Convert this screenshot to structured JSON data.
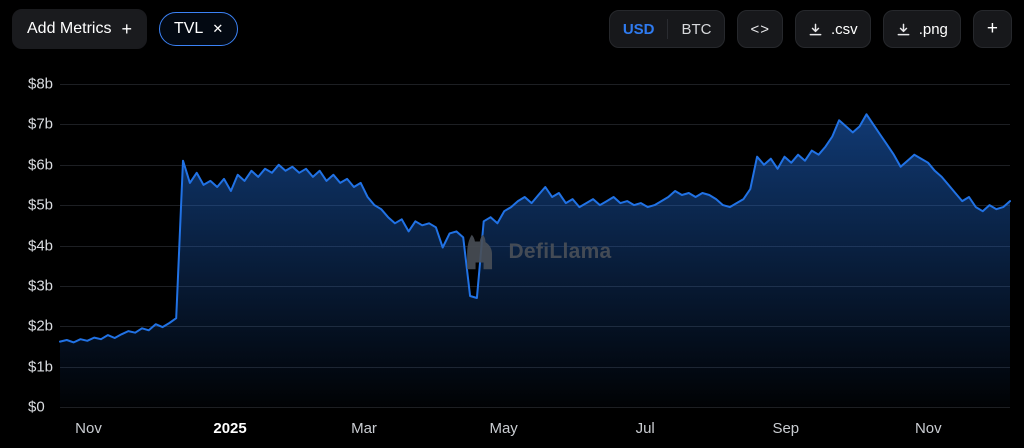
{
  "header": {
    "add_metrics": {
      "label": "Add Metrics",
      "icon": "+"
    },
    "metric_pills": [
      {
        "label": "TVL",
        "close_icon": "✕"
      }
    ],
    "currency_toggle": {
      "options": [
        {
          "label": "USD",
          "selected": true
        },
        {
          "label": "BTC",
          "selected": false
        }
      ]
    },
    "embed_button": {
      "icon": "<>"
    },
    "csv_button": {
      "label": ".csv"
    },
    "png_button": {
      "label": ".png"
    },
    "add_chart_button": {
      "label": "+"
    }
  },
  "watermark": {
    "text": "DefiLlama"
  },
  "chart_data": {
    "type": "area",
    "title": "TVL",
    "series_name": "TVL (USD)",
    "ylim": [
      0,
      8
    ],
    "unit": "$ billions",
    "grid": true,
    "line_color": "#2172e5",
    "area_top_color": "rgba(33,114,229,0.50)",
    "area_bottom_color": "rgba(33,114,229,0.02)",
    "grid_color": "#1d1f23",
    "y_ticks": [
      {
        "value": 0,
        "label": "$0"
      },
      {
        "value": 1,
        "label": "$1b"
      },
      {
        "value": 2,
        "label": "$2b"
      },
      {
        "value": 3,
        "label": "$3b"
      },
      {
        "value": 4,
        "label": "$4b"
      },
      {
        "value": 5,
        "label": "$5b"
      },
      {
        "value": 6,
        "label": "$6b"
      },
      {
        "value": 7,
        "label": "$7b"
      },
      {
        "value": 8,
        "label": "$8b"
      }
    ],
    "x_ticks": [
      {
        "label": "Nov",
        "pos": 0.03,
        "bold": false
      },
      {
        "label": "2025",
        "pos": 0.179,
        "bold": true
      },
      {
        "label": "Mar",
        "pos": 0.32,
        "bold": false
      },
      {
        "label": "May",
        "pos": 0.467,
        "bold": false
      },
      {
        "label": "Jul",
        "pos": 0.616,
        "bold": false
      },
      {
        "label": "Sep",
        "pos": 0.764,
        "bold": false
      },
      {
        "label": "Nov",
        "pos": 0.914,
        "bold": false
      }
    ],
    "values": [
      1.62,
      1.66,
      1.6,
      1.68,
      1.64,
      1.72,
      1.68,
      1.78,
      1.71,
      1.8,
      1.88,
      1.84,
      1.95,
      1.9,
      2.05,
      1.98,
      2.08,
      2.2,
      6.1,
      5.55,
      5.8,
      5.5,
      5.6,
      5.45,
      5.65,
      5.35,
      5.75,
      5.6,
      5.85,
      5.7,
      5.9,
      5.8,
      6.0,
      5.85,
      5.95,
      5.8,
      5.9,
      5.7,
      5.85,
      5.6,
      5.75,
      5.55,
      5.65,
      5.45,
      5.55,
      5.2,
      5.0,
      4.9,
      4.7,
      4.55,
      4.65,
      4.35,
      4.6,
      4.5,
      4.55,
      4.45,
      3.95,
      4.3,
      4.35,
      4.2,
      2.75,
      2.7,
      4.6,
      4.7,
      4.55,
      4.85,
      4.95,
      5.1,
      5.2,
      5.05,
      5.25,
      5.45,
      5.2,
      5.3,
      5.05,
      5.15,
      4.95,
      5.05,
      5.15,
      5.0,
      5.1,
      5.2,
      5.05,
      5.1,
      5.0,
      5.05,
      4.95,
      5.0,
      5.1,
      5.2,
      5.35,
      5.25,
      5.3,
      5.2,
      5.3,
      5.25,
      5.15,
      5.0,
      4.95,
      5.05,
      5.15,
      5.4,
      6.2,
      6.0,
      6.15,
      5.9,
      6.2,
      6.05,
      6.25,
      6.1,
      6.35,
      6.25,
      6.45,
      6.7,
      7.1,
      6.95,
      6.8,
      6.95,
      7.25,
      7.0,
      6.75,
      6.5,
      6.25,
      5.95,
      6.1,
      6.25,
      6.15,
      6.05,
      5.85,
      5.7,
      5.5,
      5.3,
      5.1,
      5.2,
      4.95,
      4.85,
      5.0,
      4.9,
      4.95,
      5.1
    ]
  }
}
